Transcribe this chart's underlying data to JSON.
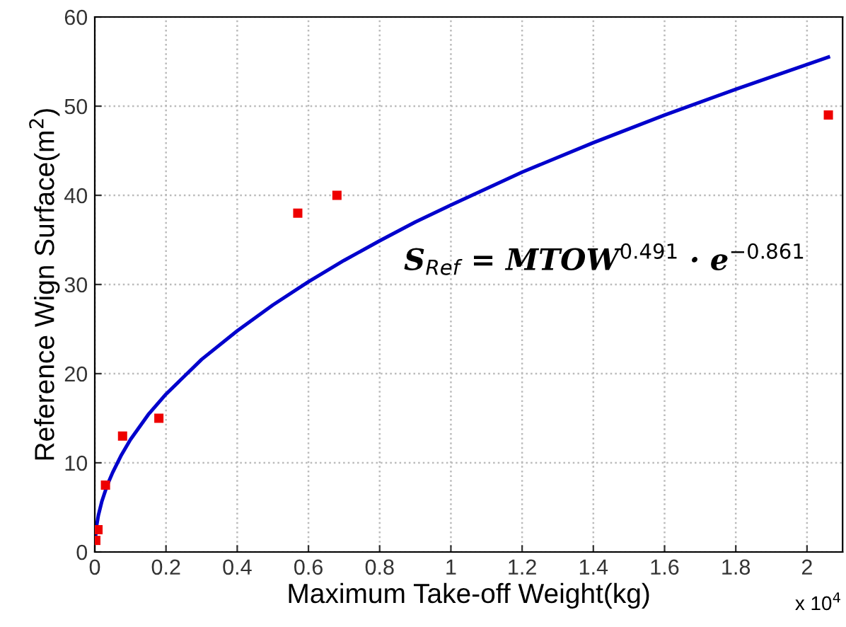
{
  "chart_data": {
    "type": "scatter",
    "xlabel": "Maximum Take-off Weight(kg)",
    "ylabel": "Reference Wign Surface(m$^{2}$)",
    "series": [
      {
        "color": "#ee0000",
        "marker": "square",
        "x": [
          0.003,
          0.009,
          0.03,
          0.078,
          0.18,
          0.57,
          0.68,
          2.06
        ],
        "values": [
          1.3,
          2.5,
          7.5,
          13,
          15,
          38,
          40,
          49
        ]
      },
      {
        "type": "line",
        "color": "#0000cc",
        "marker": "none",
        "line_style": "solid",
        "x": [
          0.001,
          0.005,
          0.01,
          0.02,
          0.035,
          0.05,
          0.075,
          0.1,
          0.15,
          0.2,
          0.3,
          0.4,
          0.5,
          0.6,
          0.7,
          0.8,
          0.9,
          1.0,
          1.2,
          1.4,
          1.6,
          1.8,
          2.06
        ],
        "values": [
          1.3,
          2.9,
          4.1,
          5.7,
          7.5,
          8.9,
          10.9,
          12.6,
          15.4,
          17.7,
          21.6,
          24.8,
          27.7,
          30.3,
          32.7,
          34.9,
          37,
          38.9,
          42.6,
          45.9,
          49.0,
          51.9,
          55.5
        ]
      }
    ],
    "annotations": [
      "S$_{Ref}$ = MTOW$^{0.491}$ · e$^{−0.861}$",
      "x 10$^{4}$"
    ],
    "xlim": [
      0,
      2.1
    ],
    "ylim": [
      0,
      60
    ],
    "xticks": [
      0,
      0.2,
      0.4,
      0.6,
      0.8,
      1,
      1.2,
      1.4,
      1.6,
      1.8,
      2
    ],
    "yticks": [
      0,
      10,
      20,
      30,
      40,
      50,
      60
    ],
    "grid": true,
    "legend": false
  }
}
